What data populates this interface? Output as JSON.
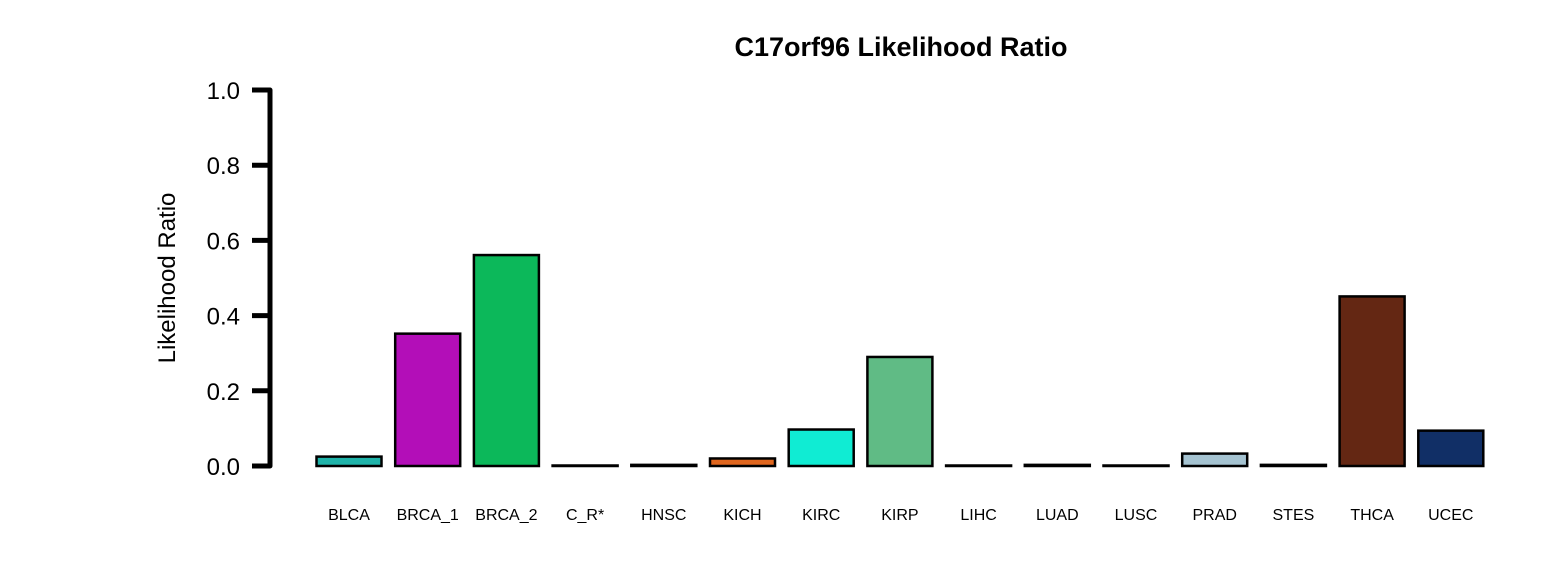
{
  "chart_data": {
    "type": "bar",
    "title": "C17orf96 Likelihood Ratio",
    "xlabel": "",
    "ylabel": "Likelihood Ratio",
    "ylim": [
      0,
      1
    ],
    "yticks": [
      "0.0",
      "0.2",
      "0.4",
      "0.6",
      "0.8",
      "1.0"
    ],
    "ytick_values": [
      0,
      0.2,
      0.4,
      0.6,
      0.8,
      1.0
    ],
    "grid": false,
    "legend": "none",
    "categories": [
      "BLCA",
      "BRCA_1",
      "BRCA_2",
      "C_R*",
      "HNSC",
      "KICH",
      "KIRC",
      "KIRP",
      "LIHC",
      "LUAD",
      "LUSC",
      "PRAD",
      "STES",
      "THCA",
      "UCEC"
    ],
    "values": [
      0.025,
      0.352,
      0.561,
      0.0,
      0.003,
      0.02,
      0.097,
      0.29,
      0.0,
      0.003,
      0.0,
      0.033,
      0.003,
      0.451,
      0.094
    ],
    "colors": [
      "#1fb3a9",
      "#b30eb8",
      "#0cb85a",
      "#5a5a5a",
      "#3a3a3a",
      "#e0661e",
      "#10ecd3",
      "#60bb85",
      "#5a5a5a",
      "#2a2a2a",
      "#5a5a5a",
      "#a5c3d1",
      "#3a3a3a",
      "#642713",
      "#112f66"
    ]
  }
}
